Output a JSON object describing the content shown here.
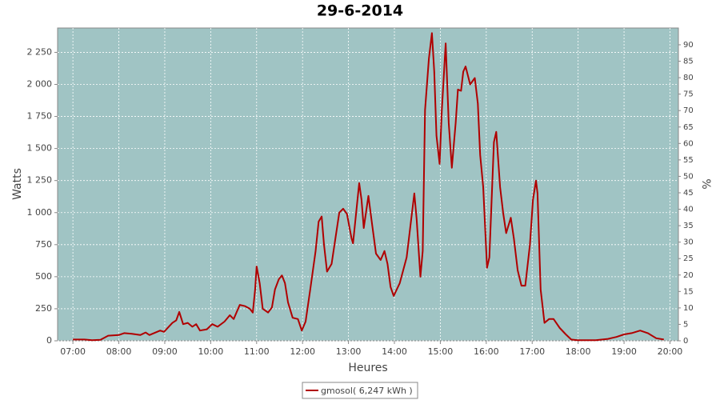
{
  "chart_data": {
    "type": "line",
    "title": "29-6-2014",
    "x_label": "Heures",
    "y_label": "Watts",
    "y2_label": "%",
    "xlim": [
      "06:40",
      "20:11"
    ],
    "xticks": [
      "07:00",
      "08:00",
      "09:00",
      "10:00",
      "11:00",
      "12:00",
      "13:00",
      "14:00",
      "15:00",
      "16:00",
      "17:00",
      "18:00",
      "19:00",
      "20:00"
    ],
    "ylim": [
      0,
      2440
    ],
    "yticks": [
      0,
      250,
      500,
      750,
      {
        "value": 1000,
        "label": "1 000"
      },
      {
        "value": 1250,
        "label": "1 250"
      },
      {
        "value": 1500,
        "label": "1 500"
      },
      {
        "value": 1750,
        "label": "1 750"
      },
      {
        "value": 2000,
        "label": "2 000"
      },
      {
        "value": 2250,
        "label": "2 250"
      }
    ],
    "y2lim": [
      0,
      95.1
    ],
    "y2ticks": [
      0,
      5,
      10,
      15,
      20,
      25,
      30,
      35,
      40,
      45,
      50,
      55,
      60,
      65,
      70,
      75,
      80,
      85,
      90
    ],
    "grid": true,
    "background": "#a0c4c4",
    "x": [
      "07:00",
      "07:15",
      "07:25",
      "07:36",
      "07:46",
      "08:00",
      "08:07",
      "08:17",
      "08:28",
      "08:35",
      "08:40",
      "08:54",
      "08:59",
      "09:10",
      "09:15",
      "09:19",
      "09:24",
      "09:30",
      "09:36",
      "09:41",
      "09:46",
      "09:55",
      "10:02",
      "10:09",
      "10:18",
      "10:25",
      "10:30",
      "10:38",
      "10:45",
      "10:51",
      "10:55",
      "10:58",
      "11:00",
      "11:04",
      "11:08",
      "11:15",
      "11:20",
      "11:24",
      "11:29",
      "11:33",
      "11:37",
      "11:41",
      "11:47",
      "11:54",
      "11:59",
      "12:04",
      "12:10",
      "12:17",
      "12:21",
      "12:25",
      "12:28",
      "12:32",
      "12:38",
      "12:43",
      "12:48",
      "12:53",
      "12:58",
      "13:04",
      "13:06",
      "13:10",
      "13:14",
      "13:17",
      "13:20",
      "13:26",
      "13:31",
      "13:36",
      "13:42",
      "13:47",
      "13:51",
      "13:55",
      "13:59",
      "14:07",
      "14:16",
      "14:21",
      "14:26",
      "14:29",
      "14:34",
      "14:37",
      "14:40",
      "14:45",
      "14:49",
      "14:52",
      "14:55",
      "14:59",
      "15:02",
      "15:07",
      "15:11",
      "15:15",
      "15:20",
      "15:23",
      "15:27",
      "15:30",
      "15:33",
      "15:39",
      "15:45",
      "15:49",
      "15:52",
      "15:56",
      "16:01",
      "16:04",
      "16:10",
      "16:13",
      "16:18",
      "16:22",
      "16:26",
      "16:32",
      "16:36",
      "16:41",
      "16:46",
      "16:51",
      "16:57",
      "17:01",
      "17:05",
      "17:07",
      "17:11",
      "17:16",
      "17:22",
      "17:28",
      "17:36",
      "17:44",
      "17:51",
      "17:59",
      "18:13",
      "18:23",
      "18:39",
      "18:50",
      "19:00",
      "19:10",
      "19:21",
      "19:31",
      "19:42",
      "19:52"
    ],
    "series": [
      {
        "name": "gmosol( 6,247 kWh )",
        "color": "#b00000",
        "values": [
          10,
          10,
          5,
          8,
          40,
          45,
          60,
          55,
          45,
          65,
          45,
          80,
          70,
          140,
          160,
          225,
          130,
          140,
          110,
          130,
          80,
          90,
          130,
          110,
          150,
          200,
          170,
          280,
          270,
          250,
          220,
          400,
          580,
          450,
          250,
          220,
          260,
          400,
          480,
          510,
          450,
          300,
          180,
          170,
          80,
          150,
          400,
          700,
          930,
          970,
          750,
          540,
          600,
          800,
          1000,
          1030,
          990,
          800,
          760,
          1000,
          1230,
          1100,
          880,
          1130,
          900,
          680,
          630,
          700,
          600,
          420,
          350,
          450,
          650,
          900,
          1150,
          950,
          500,
          700,
          1800,
          2200,
          2400,
          2100,
          1600,
          1380,
          1800,
          2320,
          1700,
          1350,
          1700,
          1960,
          1950,
          2100,
          2140,
          2000,
          2050,
          1850,
          1450,
          1200,
          570,
          650,
          1550,
          1630,
          1200,
          1000,
          840,
          960,
          800,
          550,
          430,
          430,
          750,
          1100,
          1250,
          1150,
          400,
          140,
          170,
          170,
          100,
          50,
          10,
          5,
          5,
          5,
          15,
          30,
          50,
          60,
          80,
          60,
          20,
          10
        ]
      }
    ]
  }
}
